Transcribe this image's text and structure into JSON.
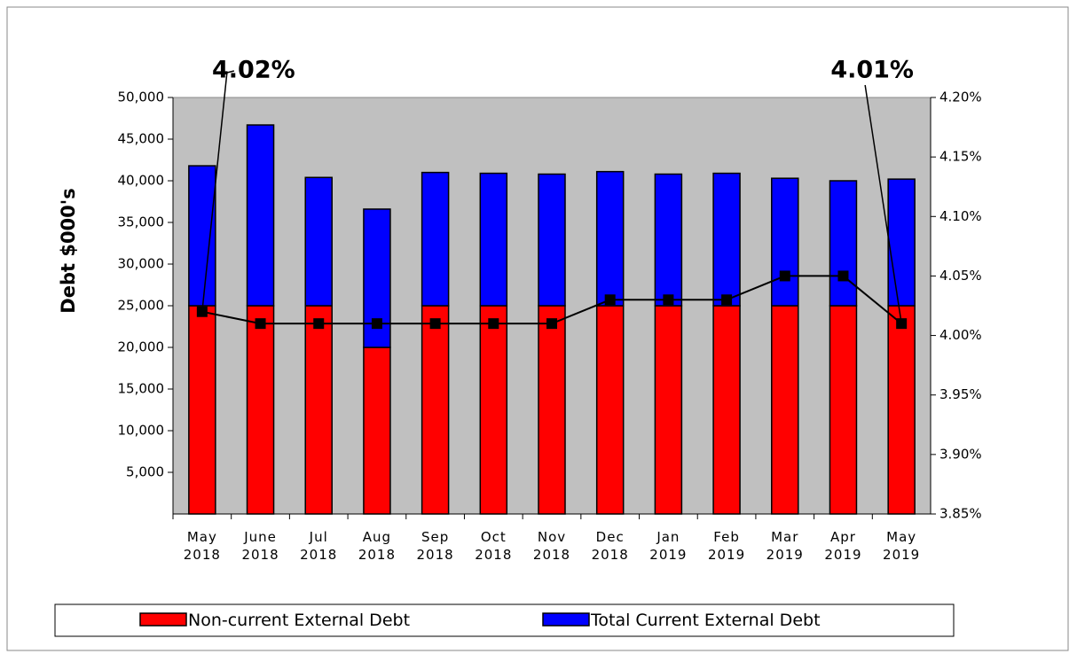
{
  "chart_data": {
    "type": "bar",
    "stacked": true,
    "y_label": "Debt $000's",
    "categories": [
      "May 2018",
      "June 2018",
      "Jul 2018",
      "Aug 2018",
      "Sep 2018",
      "Oct 2018",
      "Nov 2018",
      "Dec 2018",
      "Jan 2019",
      "Feb 2019",
      "Mar 2019",
      "Apr 2019",
      "May 2019"
    ],
    "series": [
      {
        "name": "Non-current External Debt",
        "color": "#ff0000",
        "values": [
          25000,
          25000,
          25000,
          20000,
          25000,
          25000,
          25000,
          25000,
          25000,
          25000,
          25000,
          25000,
          25000
        ]
      },
      {
        "name": "Total Current External Debt",
        "color": "#0000ff",
        "values": [
          16800,
          21700,
          15400,
          16600,
          16000,
          15900,
          15800,
          16100,
          15800,
          15900,
          15300,
          15000,
          15200
        ]
      },
      {
        "type": "line",
        "axis": "y2",
        "color": "#000000",
        "values": [
          4.02,
          4.01,
          4.01,
          4.01,
          4.01,
          4.01,
          4.01,
          4.03,
          4.03,
          4.03,
          4.05,
          4.05,
          4.01
        ],
        "value_labels": [
          "4.02%",
          null,
          null,
          null,
          null,
          null,
          null,
          null,
          null,
          null,
          null,
          null,
          "4.01%"
        ]
      }
    ],
    "ylim": [
      0,
      50000
    ],
    "yticks": [
      {
        "value": 5000,
        "label": "5,000"
      },
      {
        "value": 10000,
        "label": "10,000"
      },
      {
        "value": 15000,
        "label": "15,000"
      },
      {
        "value": 20000,
        "label": "20,000"
      },
      {
        "value": 25000,
        "label": "25,000"
      },
      {
        "value": 30000,
        "label": "30,000"
      },
      {
        "value": 35000,
        "label": "35,000"
      },
      {
        "value": 40000,
        "label": "40,000"
      },
      {
        "value": 45000,
        "label": "45,000"
      },
      {
        "value": 50000,
        "label": "50,000"
      }
    ],
    "y2lim": [
      3.85,
      4.2
    ],
    "y2ticks": [
      {
        "value": 3.85,
        "label": "3.85%"
      },
      {
        "value": 3.9,
        "label": "3.90%"
      },
      {
        "value": 3.95,
        "label": "3.95%"
      },
      {
        "value": 4.0,
        "label": "4.00%"
      },
      {
        "value": 4.05,
        "label": "4.05%"
      },
      {
        "value": 4.1,
        "label": "4.10%"
      },
      {
        "value": 4.15,
        "label": "4.15%"
      },
      {
        "value": 4.2,
        "label": "4.20%"
      }
    ],
    "legend": "bottom"
  }
}
